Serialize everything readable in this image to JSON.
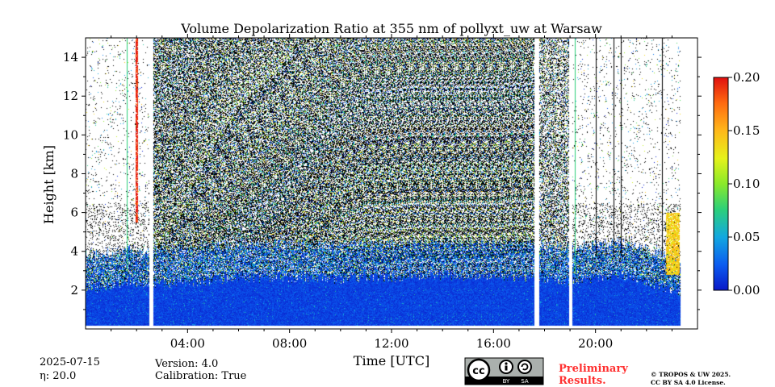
{
  "chart_data": {
    "type": "heatmap",
    "title": "Volume Depolarization Ratio at 355 nm of pollyxt_uw at Warsaw",
    "xlabel": "Time [UTC]",
    "ylabel": "Height [km]",
    "xlim_hours": [
      0,
      24
    ],
    "ylim_km": [
      0,
      15
    ],
    "x_ticks": [
      {
        "hour": 4,
        "label": "04:00"
      },
      {
        "hour": 8,
        "label": "08:00"
      },
      {
        "hour": 12,
        "label": "12:00"
      },
      {
        "hour": 16,
        "label": "16:00"
      },
      {
        "hour": 20,
        "label": "20:00"
      }
    ],
    "y_ticks": [
      {
        "value": 2,
        "label": "2"
      },
      {
        "value": 4,
        "label": "4"
      },
      {
        "value": 6,
        "label": "6"
      },
      {
        "value": 8,
        "label": "8"
      },
      {
        "value": 10,
        "label": "10"
      },
      {
        "value": 12,
        "label": "12"
      },
      {
        "value": 14,
        "label": "14"
      }
    ],
    "colorbar": {
      "range": [
        0,
        0.2
      ],
      "ticks": [
        {
          "value": 0.0,
          "label": "0.00"
        },
        {
          "value": 0.05,
          "label": "0.05"
        },
        {
          "value": 0.1,
          "label": "0.10"
        },
        {
          "value": 0.15,
          "label": "0.15"
        },
        {
          "value": 0.2,
          "label": "0.20"
        }
      ]
    },
    "data_gaps_hours": [
      [
        2.5,
        2.65
      ],
      [
        17.6,
        17.8
      ],
      [
        18.95,
        19.1
      ]
    ],
    "data_end_hour": 23.35,
    "boundary_layer_top_km": [
      {
        "hour": 0.1,
        "km": 3.0
      },
      {
        "hour": 2.0,
        "km": 3.3
      },
      {
        "hour": 3.0,
        "km": 3.2
      },
      {
        "hour": 6.0,
        "km": 3.6
      },
      {
        "hour": 10.0,
        "km": 3.5
      },
      {
        "hour": 14.0,
        "km": 3.7
      },
      {
        "hour": 17.5,
        "km": 3.6
      },
      {
        "hour": 18.9,
        "km": 3.4
      },
      {
        "hour": 21.0,
        "km": 3.7
      },
      {
        "hour": 23.3,
        "km": 2.8
      }
    ],
    "enhanced_depol_layer": [
      {
        "hour_start": 1.95,
        "hour_end": 2.05,
        "km_from": 5.5,
        "km_to": 15,
        "value": 0.2
      },
      {
        "hour_start": 22.75,
        "hour_end": 23.3,
        "km_from": 2.8,
        "km_to": 6.0,
        "value": 0.14
      }
    ]
  },
  "info": {
    "date": "2025-07-15",
    "eta": "η: 20.0",
    "version": "Version: 4.0",
    "calibration": "Calibration: True"
  },
  "license_badge": {
    "cc": "cc",
    "by": "BY",
    "sa": "SA"
  },
  "preliminary": {
    "line1": "Preliminary",
    "line2": "Results.",
    "color": "#ff3030"
  },
  "copyright": {
    "line1": "© TROPOS & UW 2025.",
    "line2": "CC BY SA 4.0 License."
  }
}
